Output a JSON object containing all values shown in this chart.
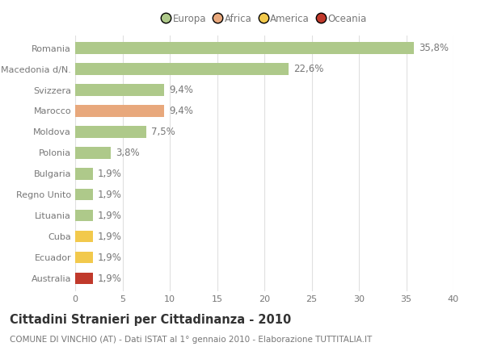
{
  "categories": [
    "Romania",
    "Macedonia d/N.",
    "Svizzera",
    "Marocco",
    "Moldova",
    "Polonia",
    "Bulgaria",
    "Regno Unito",
    "Lituania",
    "Cuba",
    "Ecuador",
    "Australia"
  ],
  "values": [
    35.8,
    22.6,
    9.4,
    9.4,
    7.5,
    3.8,
    1.9,
    1.9,
    1.9,
    1.9,
    1.9,
    1.9
  ],
  "labels": [
    "35,8%",
    "22,6%",
    "9,4%",
    "9,4%",
    "7,5%",
    "3,8%",
    "1,9%",
    "1,9%",
    "1,9%",
    "1,9%",
    "1,9%",
    "1,9%"
  ],
  "continents": [
    "Europa",
    "Europa",
    "Europa",
    "Africa",
    "Europa",
    "Europa",
    "Europa",
    "Europa",
    "Europa",
    "America",
    "America",
    "Oceania"
  ],
  "continent_colors": {
    "Europa": "#aec98a",
    "Africa": "#e8a87c",
    "America": "#f2c94c",
    "Oceania": "#c0392b"
  },
  "legend_order": [
    "Europa",
    "Africa",
    "America",
    "Oceania"
  ],
  "legend_colors": [
    "#aec98a",
    "#e8a87c",
    "#f2c94c",
    "#c0392b"
  ],
  "xlim": [
    0,
    40
  ],
  "xticks": [
    0,
    5,
    10,
    15,
    20,
    25,
    30,
    35,
    40
  ],
  "title": "Cittadini Stranieri per Cittadinanza - 2010",
  "subtitle": "COMUNE DI VINCHIO (AT) - Dati ISTAT al 1° gennaio 2010 - Elaborazione TUTTITALIA.IT",
  "background_color": "#ffffff",
  "grid_color": "#e0e0e0",
  "bar_height": 0.55,
  "label_fontsize": 8.5,
  "tick_fontsize": 8,
  "title_fontsize": 10.5,
  "subtitle_fontsize": 7.5,
  "text_color": "#777777"
}
